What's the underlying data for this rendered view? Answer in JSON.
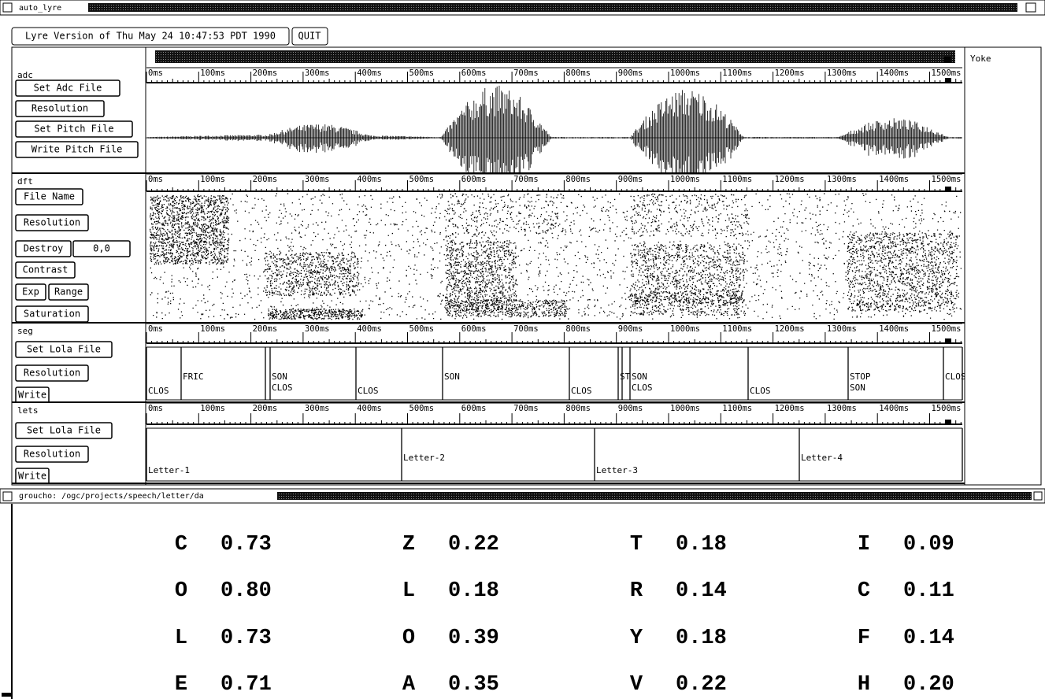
{
  "window": {
    "title": "auto_lyre"
  },
  "toolbar": {
    "version": "Lyre Version of Thu May 24 10:47:53 PDT 1990",
    "quit": "QUIT"
  },
  "yoke": "Yoke",
  "ruler": {
    "labels": [
      "0ms",
      "100ms",
      "200ms",
      "300ms",
      "400ms",
      "500ms",
      "600ms",
      "700ms",
      "800ms",
      "900ms",
      "1000ms",
      "1100ms",
      "1200ms",
      "1300ms",
      "1400ms",
      "1500ms"
    ]
  },
  "panels": [
    {
      "name": "adc",
      "buttons": [
        "Set Adc File",
        "Resolution",
        "Set Pitch File",
        "Write Pitch File"
      ]
    },
    {
      "name": "dft",
      "buttons": [
        "File Name",
        "Resolution",
        "Destroy",
        "0,0",
        "Contrast",
        "Exp",
        "Range",
        "Saturation"
      ]
    },
    {
      "name": "seg",
      "buttons": [
        "Set Lola File",
        "Resolution",
        "Write"
      ],
      "segments": [
        "CLOS",
        "FRIC",
        "SON",
        "CLOS",
        "CLOS",
        "SON",
        "CLOS",
        "ST",
        "SON",
        "CLOS",
        "CLOS",
        "STOP",
        "SON",
        "CLOS"
      ]
    },
    {
      "name": "lets",
      "buttons": [
        "Set Lola File",
        "Resolution",
        "Write"
      ],
      "segments": [
        "Letter-1",
        "Letter-2",
        "Letter-3",
        "Letter-4"
      ]
    }
  ],
  "terminal": {
    "title": "groucho: /ogc/projects/speech/letter/da",
    "rows": [
      [
        {
          "letter": "C",
          "score": "0.73"
        },
        {
          "letter": "Z",
          "score": "0.22"
        },
        {
          "letter": "T",
          "score": "0.18"
        },
        {
          "letter": "I",
          "score": "0.09"
        }
      ],
      [
        {
          "letter": "O",
          "score": "0.80"
        },
        {
          "letter": "L",
          "score": "0.18"
        },
        {
          "letter": "R",
          "score": "0.14"
        },
        {
          "letter": "C",
          "score": "0.11"
        }
      ],
      [
        {
          "letter": "L",
          "score": "0.73"
        },
        {
          "letter": "O",
          "score": "0.39"
        },
        {
          "letter": "Y",
          "score": "0.18"
        },
        {
          "letter": "F",
          "score": "0.14"
        }
      ],
      [
        {
          "letter": "E",
          "score": "0.71"
        },
        {
          "letter": "A",
          "score": "0.35"
        },
        {
          "letter": "V",
          "score": "0.22"
        },
        {
          "letter": "H",
          "score": "0.20"
        }
      ]
    ]
  }
}
